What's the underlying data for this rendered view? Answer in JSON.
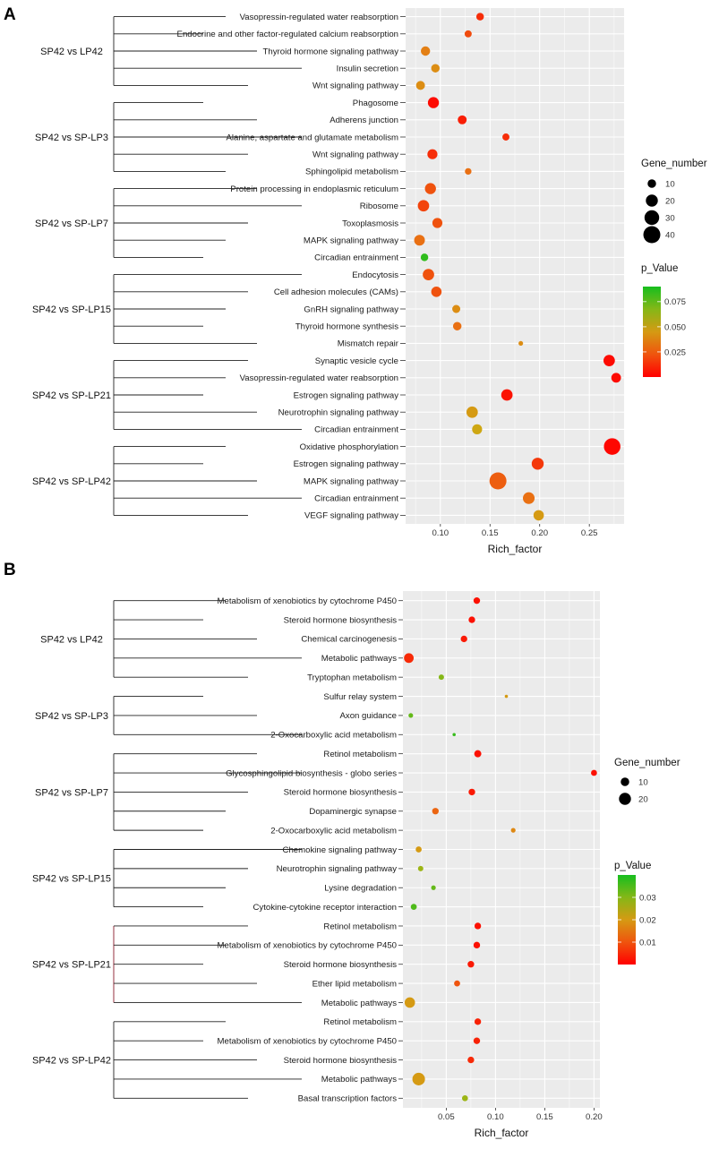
{
  "chart_data": [
    {
      "panel": "A",
      "type": "scatter",
      "xlabel": "Rich_factor",
      "xlim": [
        0.065,
        0.285
      ],
      "xticks": [
        0.1,
        0.15,
        0.2,
        0.25
      ],
      "xtick_labels": [
        "0.10",
        "0.15",
        "0.20",
        "0.25"
      ],
      "size_legend": {
        "title": "Gene_number",
        "values": [
          10,
          20,
          30,
          40
        ],
        "labels": [
          "10",
          "20",
          "30",
          "40"
        ]
      },
      "color_legend": {
        "title": "p_Value",
        "min": 0.0,
        "max": 0.09,
        "ticks": [
          0.025,
          0.05,
          0.075
        ],
        "tick_labels": [
          "0.025",
          "0.050",
          "0.075"
        ]
      },
      "groups": [
        {
          "name": "SP42 vs LP42",
          "terms": [
            {
              "term": "Vasopressin-regulated water reabsorption",
              "x": 0.14,
              "genes": 8,
              "p": 0.012
            },
            {
              "term": "Endocrine and other factor-regulated calcium reabsorption",
              "x": 0.128,
              "genes": 7,
              "p": 0.02
            },
            {
              "term": "Thyroid hormone signaling pathway",
              "x": 0.085,
              "genes": 12,
              "p": 0.035
            },
            {
              "term": "Insulin secretion",
              "x": 0.095,
              "genes": 10,
              "p": 0.04
            },
            {
              "term": "Wnt signaling pathway",
              "x": 0.08,
              "genes": 11,
              "p": 0.04
            }
          ]
        },
        {
          "name": "SP42 vs SP-LP3",
          "terms": [
            {
              "term": "Phagosome",
              "x": 0.093,
              "genes": 17,
              "p": 0.003
            },
            {
              "term": "Adherens junction",
              "x": 0.122,
              "genes": 11,
              "p": 0.008
            },
            {
              "term": "Alanine, aspartate and glutamate metabolism",
              "x": 0.166,
              "genes": 7,
              "p": 0.012
            },
            {
              "term": "Wnt signaling pathway",
              "x": 0.092,
              "genes": 14,
              "p": 0.012
            },
            {
              "term": "Sphingolipid metabolism",
              "x": 0.128,
              "genes": 6,
              "p": 0.03
            }
          ]
        },
        {
          "name": "SP42 vs SP-LP7",
          "terms": [
            {
              "term": "Protein processing in endoplasmic reticulum",
              "x": 0.09,
              "genes": 17,
              "p": 0.022
            },
            {
              "term": "Ribosome",
              "x": 0.083,
              "genes": 18,
              "p": 0.018
            },
            {
              "term": "Toxoplasmosis",
              "x": 0.097,
              "genes": 14,
              "p": 0.022
            },
            {
              "term": "MAPK signaling pathway",
              "x": 0.079,
              "genes": 16,
              "p": 0.03
            },
            {
              "term": "Circadian entrainment",
              "x": 0.084,
              "genes": 8,
              "p": 0.085
            }
          ]
        },
        {
          "name": "SP42 vs SP-LP15",
          "terms": [
            {
              "term": "Endocytosis",
              "x": 0.088,
              "genes": 18,
              "p": 0.022
            },
            {
              "term": "Cell adhesion molecules (CAMs)",
              "x": 0.096,
              "genes": 15,
              "p": 0.022
            },
            {
              "term": "GnRH signaling pathway",
              "x": 0.116,
              "genes": 9,
              "p": 0.04
            },
            {
              "term": "Thyroid hormone synthesis",
              "x": 0.117,
              "genes": 10,
              "p": 0.03
            },
            {
              "term": "Mismatch repair",
              "x": 0.181,
              "genes": 3,
              "p": 0.04
            }
          ]
        },
        {
          "name": "SP42 vs SP-LP21",
          "terms": [
            {
              "term": "Synaptic vesicle cycle",
              "x": 0.27,
              "genes": 18,
              "p": 0.003
            },
            {
              "term": "Vasopressin-regulated water reabsorption",
              "x": 0.277,
              "genes": 13,
              "p": 0.003
            },
            {
              "term": "Estrogen signaling pathway",
              "x": 0.167,
              "genes": 18,
              "p": 0.005
            },
            {
              "term": "Neurotrophin signaling pathway",
              "x": 0.132,
              "genes": 18,
              "p": 0.045
            },
            {
              "term": "Circadian entrainment",
              "x": 0.137,
              "genes": 14,
              "p": 0.05
            }
          ]
        },
        {
          "name": "SP42 vs SP-LP42",
          "terms": [
            {
              "term": "Oxidative phosphorylation",
              "x": 0.273,
              "genes": 38,
              "p": 0.002
            },
            {
              "term": "Estrogen signaling pathway",
              "x": 0.198,
              "genes": 20,
              "p": 0.015
            },
            {
              "term": "MAPK signaling pathway",
              "x": 0.158,
              "genes": 40,
              "p": 0.025
            },
            {
              "term": "Circadian entrainment",
              "x": 0.189,
              "genes": 19,
              "p": 0.03
            },
            {
              "term": "VEGF signaling pathway",
              "x": 0.199,
              "genes": 15,
              "p": 0.045
            }
          ]
        }
      ]
    },
    {
      "panel": "B",
      "type": "scatter",
      "xlabel": "Rich_factor",
      "xlim": [
        0.006,
        0.206
      ],
      "xticks": [
        0.05,
        0.1,
        0.15,
        0.2
      ],
      "xtick_labels": [
        "0.05",
        "0.10",
        "0.15",
        "0.20"
      ],
      "size_legend": {
        "title": "Gene_number",
        "values": [
          10,
          20
        ],
        "labels": [
          "10",
          "20"
        ]
      },
      "color_legend": {
        "title": "p_Value",
        "min": 0.0,
        "max": 0.04,
        "ticks": [
          0.01,
          0.02,
          0.03
        ],
        "tick_labels": [
          "0.01",
          "0.02",
          "0.03"
        ]
      },
      "groups": [
        {
          "name": "SP42 vs LP42",
          "terms": [
            {
              "term": "Metabolism of xenobiotics by cytochrome P450",
              "x": 0.081,
              "genes": 6,
              "p": 0.002
            },
            {
              "term": "Steroid hormone biosynthesis",
              "x": 0.076,
              "genes": 6,
              "p": 0.002
            },
            {
              "term": "Chemical carcinogenesis",
              "x": 0.068,
              "genes": 6,
              "p": 0.003
            },
            {
              "term": "Metabolic pathways",
              "x": 0.012,
              "genes": 13,
              "p": 0.005
            },
            {
              "term": "Tryptophan metabolism",
              "x": 0.045,
              "genes": 4,
              "p": 0.03
            }
          ]
        },
        {
          "name": "SP42 vs SP-LP3",
          "terms": [
            {
              "term": "Sulfur relay system",
              "x": 0.111,
              "genes": 1,
              "p": 0.02
            },
            {
              "term": "Axon guidance",
              "x": 0.014,
              "genes": 3,
              "p": 0.033
            },
            {
              "term": "2-Oxocarboxylic acid metabolism",
              "x": 0.058,
              "genes": 1,
              "p": 0.037
            }
          ]
        },
        {
          "name": "SP42 vs SP-LP7",
          "terms": [
            {
              "term": "Retinol metabolism",
              "x": 0.082,
              "genes": 7,
              "p": 0.002
            },
            {
              "term": "Glycosphingolipid biosynthesis - globo series",
              "x": 0.2,
              "genes": 5,
              "p": 0.002
            },
            {
              "term": "Steroid hormone biosynthesis",
              "x": 0.076,
              "genes": 6,
              "p": 0.003
            },
            {
              "term": "Dopaminergic synapse",
              "x": 0.039,
              "genes": 6,
              "p": 0.012
            },
            {
              "term": "2-Oxocarboxylic acid metabolism",
              "x": 0.118,
              "genes": 3,
              "p": 0.017
            }
          ]
        },
        {
          "name": "SP42 vs SP-LP15",
          "terms": [
            {
              "term": "Chemokine signaling pathway",
              "x": 0.022,
              "genes": 5,
              "p": 0.02
            },
            {
              "term": "Neurotrophin signaling pathway",
              "x": 0.024,
              "genes": 4,
              "p": 0.028
            },
            {
              "term": "Lysine degradation",
              "x": 0.037,
              "genes": 3,
              "p": 0.033
            },
            {
              "term": "Cytokine-cytokine receptor interaction",
              "x": 0.017,
              "genes": 5,
              "p": 0.035
            }
          ]
        },
        {
          "name": "SP42 vs SP-LP21",
          "terms": [
            {
              "term": "Retinol metabolism",
              "x": 0.082,
              "genes": 6,
              "p": 0.002
            },
            {
              "term": "Metabolism of xenobiotics by cytochrome P450",
              "x": 0.081,
              "genes": 6,
              "p": 0.002
            },
            {
              "term": "Steroid hormone biosynthesis",
              "x": 0.075,
              "genes": 6,
              "p": 0.003
            },
            {
              "term": "Ether lipid metabolism",
              "x": 0.061,
              "genes": 5,
              "p": 0.01
            },
            {
              "term": "Metabolic pathways",
              "x": 0.013,
              "genes": 15,
              "p": 0.02
            }
          ]
        },
        {
          "name": "SP42 vs SP-LP42",
          "terms": [
            {
              "term": "Retinol metabolism",
              "x": 0.082,
              "genes": 6,
              "p": 0.004
            },
            {
              "term": "Metabolism of xenobiotics by cytochrome P450",
              "x": 0.081,
              "genes": 6,
              "p": 0.004
            },
            {
              "term": "Steroid hormone biosynthesis",
              "x": 0.075,
              "genes": 6,
              "p": 0.005
            },
            {
              "term": "Metabolic pathways",
              "x": 0.022,
              "genes": 22,
              "p": 0.02
            },
            {
              "term": "Basal transcription factors",
              "x": 0.069,
              "genes": 5,
              "p": 0.028
            }
          ]
        }
      ]
    }
  ]
}
